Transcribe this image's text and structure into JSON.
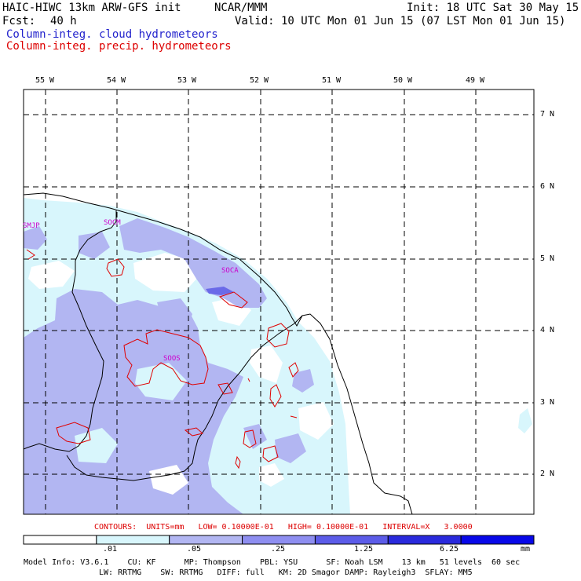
{
  "header": {
    "model": "HAIC-HIWC 13km ARW-GFS init",
    "org": "NCAR/MMM",
    "init": "Init: 18 UTC Sat 30 May 15",
    "fcst_label": "Fcst:",
    "fcst_value": "40 h",
    "valid": "Valid: 10 UTC Mon 01 Jun 15 (07 LST Mon 01 Jun 15)",
    "field1": "Column-integ. cloud hydrometeors",
    "field2": "Column-integ. precip. hydrometeors"
  },
  "map": {
    "lon_labels": [
      "55 W",
      "54 W",
      "53 W",
      "52 W",
      "51 W",
      "50 W",
      "49 W"
    ],
    "lat_labels": [
      "7 N",
      "6 N",
      "5 N",
      "4 N",
      "3 N",
      "2 N"
    ],
    "stations": [
      "SMJP",
      "SOCM",
      "SOCA",
      "SOOS"
    ]
  },
  "contour_info": "CONTOURS:  UNITS=mm   LOW= 0.10000E-01   HIGH= 0.10000E-01   INTERVAL=X   3.0000",
  "colorbar": {
    "units": "mm",
    "ticks": [
      ".01",
      ".05",
      ".25",
      "1.25",
      "6.25"
    ],
    "colors": [
      "#ffffff",
      "#d8f6fc",
      "#b2b6f2",
      "#8e8ef0",
      "#5c5ce8",
      "#2a2adc",
      "#0808e8"
    ]
  },
  "footer": {
    "line1": "Model Info: V3.6.1    CU: KF      MP: Thompson    PBL: YSU      SF: Noah LSM    13 km   51 levels  60 sec",
    "line2": "LW: RRTMG    SW: RRTMG   DIFF: full   KM: 2D Smagor DAMP: Rayleigh3  SFLAY: MM5"
  }
}
